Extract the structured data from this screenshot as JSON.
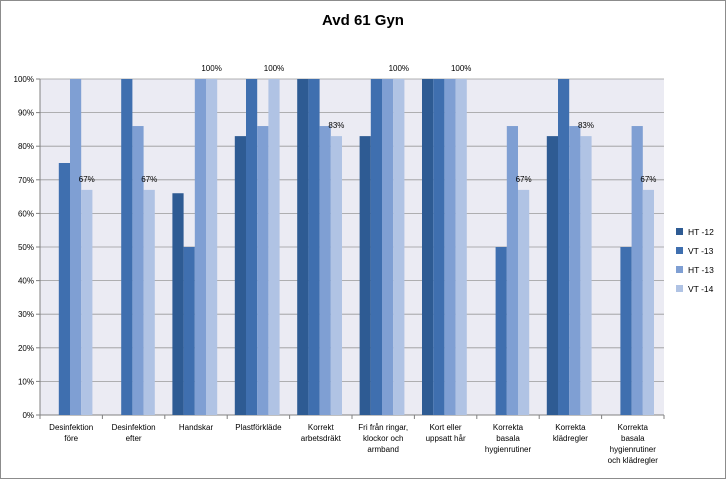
{
  "chart_data": {
    "type": "bar",
    "title": "Avd 61 Gyn",
    "xlabel": "",
    "ylabel": "",
    "ylim": [
      0,
      100
    ],
    "yticks": [
      "0%",
      "10%",
      "20%",
      "30%",
      "40%",
      "50%",
      "60%",
      "70%",
      "80%",
      "90%",
      "100%"
    ],
    "grid": true,
    "legend_position": "right",
    "categories": [
      [
        "Desinfektion",
        "före"
      ],
      [
        "Desinfektion",
        "efter"
      ],
      [
        "Handskar"
      ],
      [
        "Plastförkläde"
      ],
      [
        "Korrekt",
        "arbetsdräkt"
      ],
      [
        "Fri från ringar,",
        "klockor och",
        "armband"
      ],
      [
        "Kort eller",
        "uppsatt hår"
      ],
      [
        "Korrekta",
        "basala",
        "hygienrutiner"
      ],
      [
        "Korrekta",
        "klädregler"
      ],
      [
        "Korrekta",
        "basala",
        "hygienrutiner",
        "och klädregler"
      ]
    ],
    "series": [
      {
        "name": "HT -12",
        "color": "#2e5b93",
        "values": [
          null,
          null,
          66,
          83,
          100,
          83,
          100,
          null,
          83,
          null
        ]
      },
      {
        "name": "VT -13",
        "color": "#3f6faf",
        "values": [
          75,
          100,
          50,
          100,
          100,
          100,
          100,
          50,
          100,
          50
        ]
      },
      {
        "name": "HT -13",
        "color": "#7f9fd3",
        "values": [
          100,
          86,
          100,
          86,
          86,
          100,
          100,
          86,
          86,
          86
        ]
      },
      {
        "name": "VT -14",
        "color": "#b0c3e4",
        "values": [
          67,
          67,
          100,
          100,
          83,
          100,
          100,
          67,
          83,
          67
        ]
      }
    ],
    "data_labels": [
      {
        "category_index": 0,
        "text": "67%",
        "value": 67
      },
      {
        "category_index": 1,
        "text": "67%",
        "value": 67
      },
      {
        "category_index": 2,
        "text": "100%",
        "value": 100
      },
      {
        "category_index": 3,
        "text": "100%",
        "value": 100
      },
      {
        "category_index": 4,
        "text": "83%",
        "value": 83
      },
      {
        "category_index": 5,
        "text": "100%",
        "value": 100
      },
      {
        "category_index": 6,
        "text": "100%",
        "value": 100
      },
      {
        "category_index": 7,
        "text": "67%",
        "value": 67
      },
      {
        "category_index": 8,
        "text": "83%",
        "value": 83
      },
      {
        "category_index": 9,
        "text": "67%",
        "value": 67
      }
    ],
    "colors": {
      "plot_background": "#ebebf3",
      "gridline": "#9a9a9a",
      "axis": "#808080"
    }
  }
}
